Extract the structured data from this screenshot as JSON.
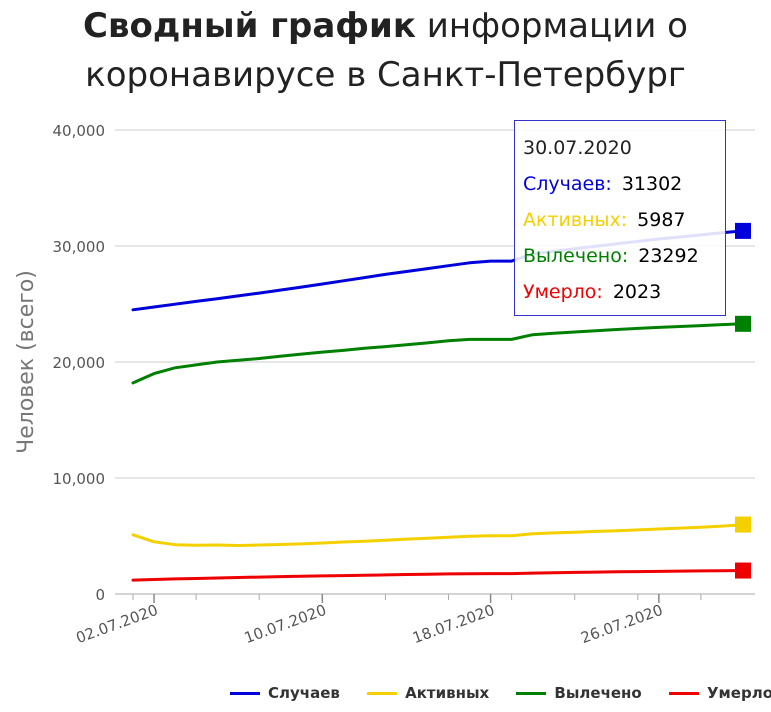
{
  "title": {
    "bold": "Сводный график",
    "rest": " информации о коронавирусе в Санкт-Петербург"
  },
  "chart_data": {
    "type": "line",
    "ylabel": "Человек (всего)",
    "ylim": [
      0,
      40000
    ],
    "yticks": [
      "0",
      "10,000",
      "20,000",
      "30,000",
      "40,000"
    ],
    "xticks": [
      "02.07.2020",
      "10.07.2020",
      "18.07.2020",
      "26.07.2020"
    ],
    "grid": true,
    "legend_position": "bottom",
    "x": [
      "01.07.2020",
      "02.07.2020",
      "03.07.2020",
      "04.07.2020",
      "05.07.2020",
      "06.07.2020",
      "07.07.2020",
      "08.07.2020",
      "09.07.2020",
      "10.07.2020",
      "11.07.2020",
      "12.07.2020",
      "13.07.2020",
      "14.07.2020",
      "15.07.2020",
      "16.07.2020",
      "17.07.2020",
      "18.07.2020",
      "19.07.2020",
      "20.07.2020",
      "21.07.2020",
      "22.07.2020",
      "23.07.2020",
      "24.07.2020",
      "25.07.2020",
      "26.07.2020",
      "27.07.2020",
      "28.07.2020",
      "29.07.2020",
      "30.07.2020"
    ],
    "series": [
      {
        "name": "Случаев",
        "color": "#0000dd",
        "values": [
          24500,
          24740,
          24980,
          25220,
          25460,
          25700,
          25940,
          26200,
          26460,
          26720,
          27000,
          27280,
          27550,
          27800,
          28050,
          28300,
          28550,
          28700,
          28700,
          29300,
          29540,
          29760,
          29980,
          30200,
          30400,
          30600,
          30780,
          30960,
          31140,
          31302
        ]
      },
      {
        "name": "Активных",
        "color": "#f5d000",
        "values": [
          5100,
          4500,
          4250,
          4200,
          4220,
          4180,
          4220,
          4270,
          4320,
          4400,
          4480,
          4550,
          4640,
          4730,
          4810,
          4890,
          4980,
          5020,
          5020,
          5200,
          5270,
          5330,
          5400,
          5460,
          5530,
          5600,
          5680,
          5760,
          5850,
          5987
        ]
      },
      {
        "name": "Вылечено",
        "color": "#008000",
        "values": [
          18200,
          19000,
          19500,
          19750,
          20000,
          20150,
          20300,
          20500,
          20680,
          20850,
          21000,
          21180,
          21330,
          21480,
          21650,
          21830,
          21950,
          21950,
          21950,
          22350,
          22480,
          22590,
          22700,
          22800,
          22900,
          22980,
          23060,
          23140,
          23220,
          23292
        ]
      },
      {
        "name": "Умерло",
        "color": "#ee0000",
        "values": [
          1200,
          1250,
          1300,
          1340,
          1380,
          1420,
          1460,
          1500,
          1530,
          1560,
          1590,
          1620,
          1650,
          1680,
          1710,
          1730,
          1750,
          1760,
          1760,
          1800,
          1830,
          1860,
          1890,
          1910,
          1930,
          1950,
          1970,
          1990,
          2010,
          2023
        ]
      }
    ]
  },
  "tooltip": {
    "date": "30.07.2020",
    "rows": [
      {
        "label": "Случаев:",
        "value": "31302",
        "color": "#0000dd"
      },
      {
        "label": "Активных:",
        "value": "5987",
        "color": "#f5d000"
      },
      {
        "label": "Вылечено:",
        "value": "23292",
        "color": "#008000"
      },
      {
        "label": "Умерло:",
        "value": "2023",
        "color": "#ee0000"
      }
    ]
  }
}
